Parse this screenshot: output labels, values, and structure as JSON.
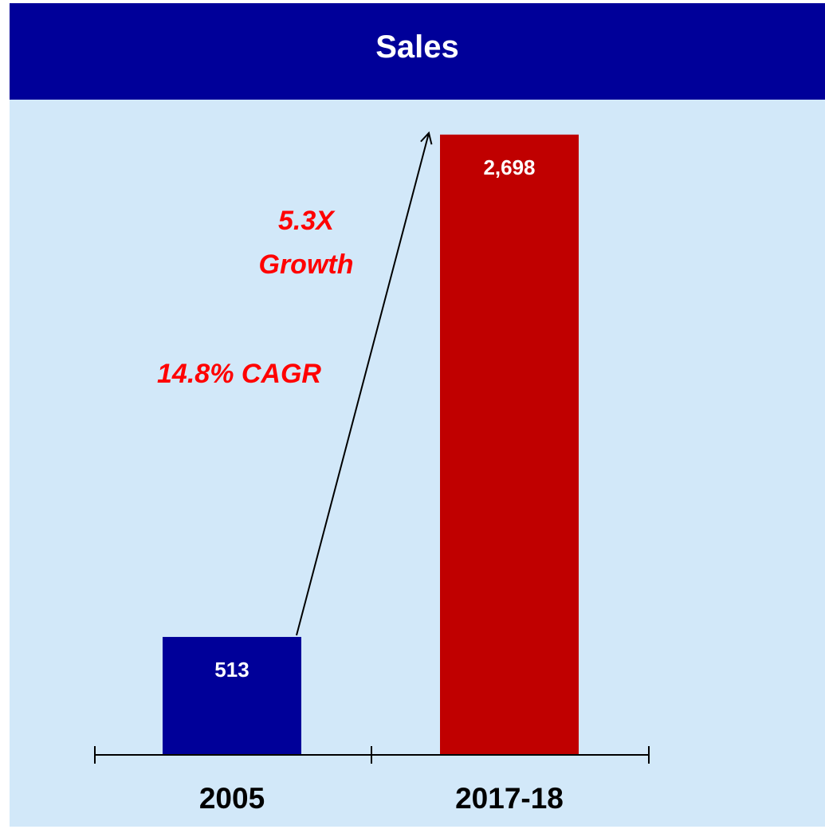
{
  "header": {
    "title": "Sales"
  },
  "colors": {
    "header_bg": "#000099",
    "plot_bg": "#D2E8F9",
    "bar_2005": "#000099",
    "bar_2017": "#C00000",
    "annotation_text": "#FF0000",
    "axis": "#000000",
    "bar_label": "#FFFFFF"
  },
  "chart_data": {
    "type": "bar",
    "title": "Sales",
    "categories": [
      "2005",
      "2017-18"
    ],
    "values": [
      513,
      2698
    ],
    "value_labels": [
      "513",
      "2,698"
    ],
    "bar_colors": [
      "#000099",
      "#C00000"
    ],
    "ylim": [
      0,
      2850
    ],
    "grid": false,
    "legend": "none",
    "annotations": {
      "growth_line1": "5.3X",
      "growth_line2": "Growth",
      "cagr": "14.8% CAGR",
      "arrow": "from top of 2005 bar to top of 2017-18 bar"
    }
  }
}
